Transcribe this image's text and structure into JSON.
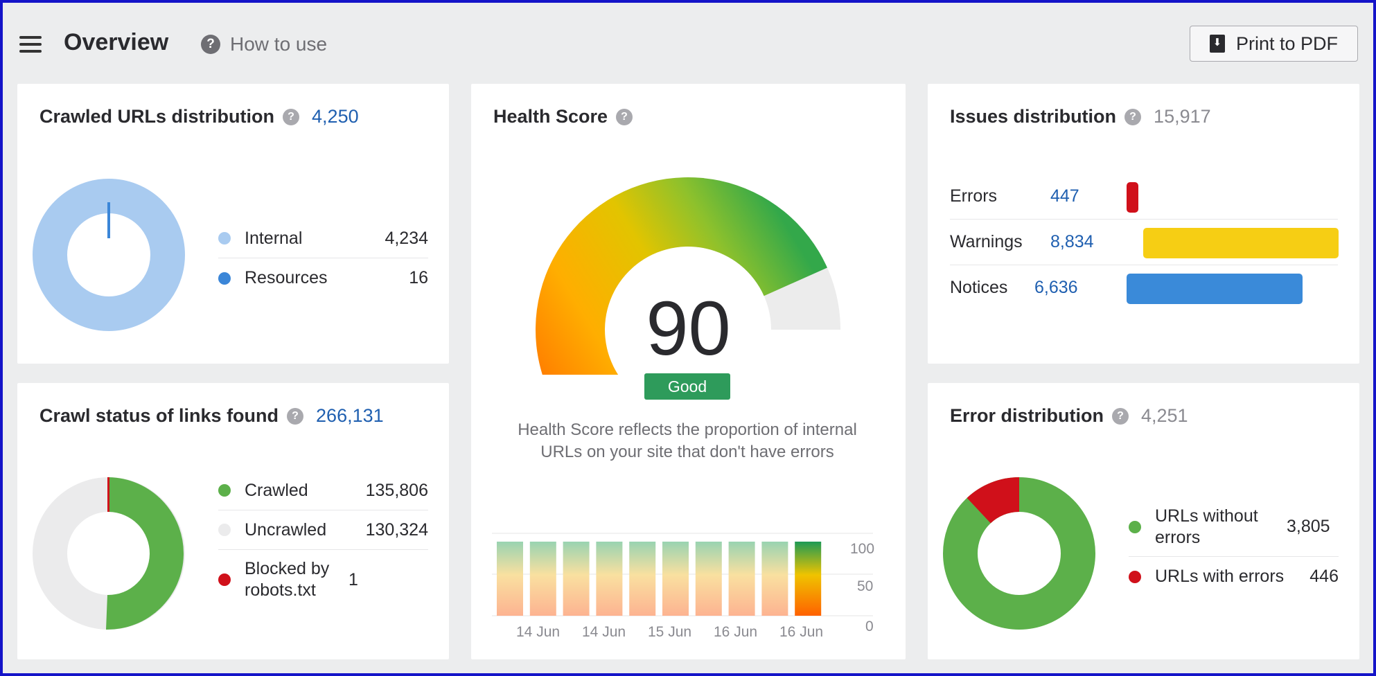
{
  "header": {
    "title": "Overview",
    "how_to_use": "How to use",
    "print_label": "Print to PDF"
  },
  "crawled_urls": {
    "title": "Crawled URLs distribution",
    "total": "4,250",
    "items": [
      {
        "label": "Internal",
        "value": "4,234",
        "color": "#a9cbf0"
      },
      {
        "label": "Resources",
        "value": "16",
        "color": "#3b86d8"
      }
    ]
  },
  "health_score": {
    "title": "Health Score",
    "score": "90",
    "score_value": 90,
    "badge": "Good",
    "description": "Health Score reflects the proportion of internal URLs on your site that don't have errors",
    "history_values": [
      90,
      90,
      90,
      90,
      90,
      90,
      90,
      90,
      90,
      90
    ],
    "x_labels": [
      "14 Jun",
      "14 Jun",
      "15 Jun",
      "16 Jun",
      "16 Jun"
    ],
    "y_labels": [
      "100",
      "50",
      "0"
    ]
  },
  "issues": {
    "title": "Issues distribution",
    "total": "15,917",
    "rows": [
      {
        "label": "Errors",
        "value": "447",
        "color": "#d0101a"
      },
      {
        "label": "Warnings",
        "value": "8,834",
        "color": "#f6ce14"
      },
      {
        "label": "Notices",
        "value": "6,636",
        "color": "#3a8ad9"
      }
    ]
  },
  "crawl_status": {
    "title": "Crawl status of links found",
    "total": "266,131",
    "items": [
      {
        "label": "Crawled",
        "value": "135,806",
        "color": "#5cb04a"
      },
      {
        "label": "Uncrawled",
        "value": "130,324",
        "color": "#ebebec"
      },
      {
        "label": "Blocked by robots.txt",
        "value": "1",
        "color": "#d0101a"
      }
    ]
  },
  "error_distribution": {
    "title": "Error distribution",
    "total": "4,251",
    "items": [
      {
        "label": "URLs without errors",
        "value": "3,805",
        "color": "#5cb04a"
      },
      {
        "label": "URLs with errors",
        "value": "446",
        "color": "#d0101a"
      }
    ]
  }
}
